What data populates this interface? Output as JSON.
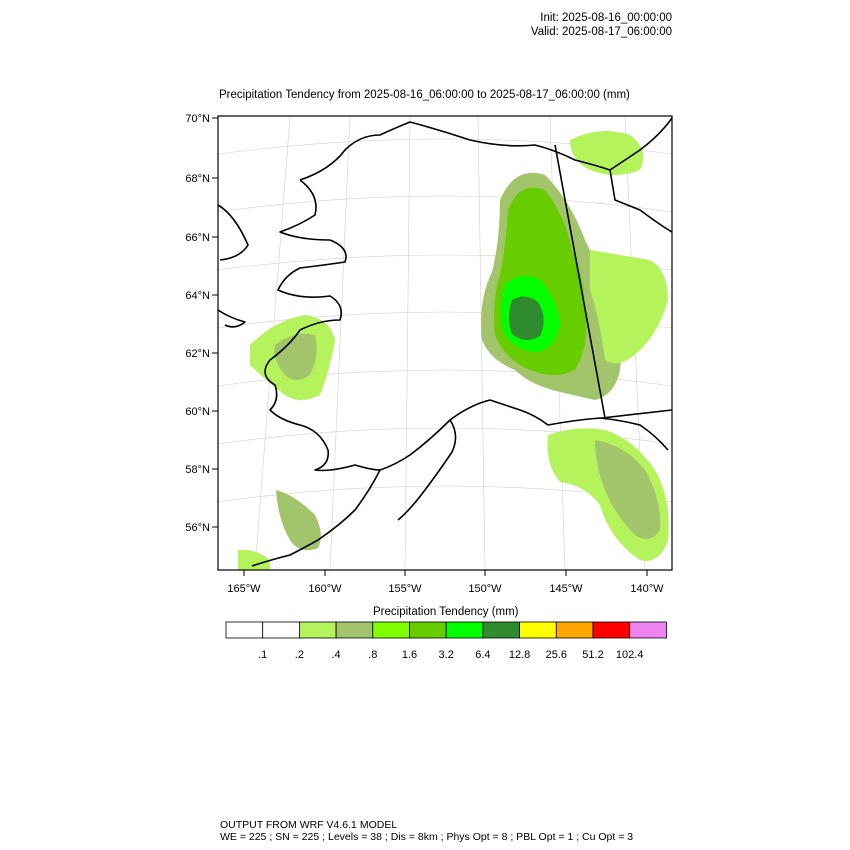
{
  "header": {
    "init": "Init: 2025-08-16_00:00:00",
    "valid": "Valid: 2025-08-17_06:00:00"
  },
  "map": {
    "title": "Precipitation Tendency from 2025-08-16_06:00:00 to 2025-08-17_06:00:00   (mm)",
    "lat_labels": [
      "70°N",
      "68°N",
      "66°N",
      "64°N",
      "62°N",
      "60°N",
      "58°N",
      "56°N"
    ],
    "lon_labels": [
      "165°W",
      "160°W",
      "155°W",
      "150°W",
      "145°W",
      "140°W"
    ],
    "fill_colors": {
      "level1": "#b4f35c",
      "level2": "#a2c46b",
      "level3": "#80ff00",
      "level4": "#67cc00",
      "level5": "#00ff00",
      "level6": "#2e8b2e"
    }
  },
  "colorbar": {
    "title": "Precipitation Tendency  (mm)",
    "colors": [
      "#ffffff",
      "#ffffff",
      "#b4f35c",
      "#a2c46b",
      "#80ff00",
      "#67cc00",
      "#00ff00",
      "#2e8b2e",
      "#ffff00",
      "#ffa500",
      "#ff0000",
      "#ee82ee"
    ],
    "labels": [
      ".1",
      ".2",
      ".4",
      ".8",
      "1.6",
      "3.2",
      "6.4",
      "12.8",
      "25.6",
      "51.2",
      "102.4"
    ]
  },
  "footer": {
    "line1": "OUTPUT FROM WRF V4.6.1 MODEL",
    "line2": "WE = 225 ; SN = 225 ; Levels = 38 ; Dis = 8km ; Phys Opt = 8 ; PBL Opt = 1 ; Cu Opt = 3"
  }
}
